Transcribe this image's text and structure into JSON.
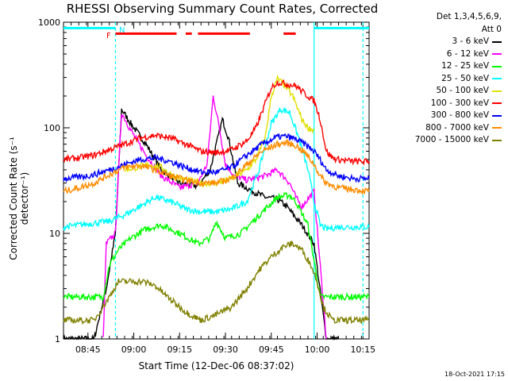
{
  "chart_data": {
    "type": "line",
    "title": "RHESSI Observing Summary Count Rates, Corrected",
    "xlabel": "Start Time (12-Dec-06 08:37:02)",
    "ylabel": "Corrected Count Rate (s⁻¹ detector⁻¹)",
    "yscale": "log",
    "ylim": [
      1,
      1000
    ],
    "xlim_minutes": [
      0,
      100
    ],
    "x_tick_labels": [
      "08:45",
      "09:00",
      "09:15",
      "09:30",
      "09:45",
      "10:00",
      "10:15"
    ],
    "x_tick_minutes": [
      8,
      23,
      38,
      53,
      68,
      83,
      98
    ],
    "y_tick_labels": [
      "1",
      "10",
      "100",
      "1000"
    ],
    "y_tick_values": [
      1,
      10,
      100,
      1000
    ],
    "legend_header": [
      "Det 1,3,4,5,6,9,",
      "Att 0"
    ],
    "flag_labels": {
      "F": "F",
      "N": "N"
    },
    "timestamp": "18-Oct-2021 17:15",
    "series": [
      {
        "name": "3 - 6 keV",
        "color": "#000000",
        "x": [
          0,
          10,
          14,
          17,
          19,
          22,
          27,
          32,
          38,
          44,
          48,
          52,
          54,
          57,
          62,
          66,
          70,
          73,
          78,
          82,
          86,
          90
        ],
        "y": [
          1,
          1,
          3,
          10,
          150,
          110,
          70,
          40,
          30,
          28,
          40,
          120,
          80,
          30,
          25,
          22,
          21,
          18,
          12,
          8,
          1,
          1
        ]
      },
      {
        "name": "6 - 12 keV",
        "color": "#ff00ff",
        "x": [
          13,
          14,
          17,
          19,
          22,
          27,
          32,
          38,
          44,
          47,
          49,
          51,
          53,
          56,
          60,
          66,
          70,
          74,
          76,
          78,
          82,
          86
        ],
        "y": [
          1,
          8,
          10,
          140,
          95,
          55,
          35,
          27,
          30,
          45,
          200,
          100,
          45,
          35,
          32,
          35,
          40,
          30,
          22,
          18,
          25,
          1
        ]
      },
      {
        "name": "12 - 25 keV",
        "color": "#00ff00",
        "x": [
          0,
          10,
          13,
          15,
          18,
          22,
          27,
          32,
          38,
          44,
          48,
          50,
          53,
          58,
          62,
          66,
          70,
          74,
          76,
          80,
          84,
          88,
          92,
          100
        ],
        "y": [
          2.5,
          2.5,
          2.5,
          5,
          7,
          9,
          11,
          12,
          10,
          8,
          9,
          13,
          9,
          10,
          13,
          17,
          22,
          23,
          20,
          12,
          2.5,
          2.5,
          2.5,
          2.5
        ]
      },
      {
        "name": "25 - 50 keV",
        "color": "#00ffff",
        "x": [
          0,
          5,
          10,
          15,
          20,
          25,
          30,
          35,
          40,
          45,
          50,
          55,
          60,
          64,
          68,
          71,
          74,
          77,
          80,
          82,
          84,
          86,
          90,
          95,
          100
        ],
        "y": [
          11.5,
          12,
          12.5,
          13,
          15,
          18,
          22,
          20,
          17,
          16,
          16,
          17,
          20,
          40,
          110,
          150,
          140,
          80,
          40,
          20,
          12,
          11,
          11.5,
          11.5,
          11.5
        ]
      },
      {
        "name": "50 - 100 keV",
        "color": "#e0e000",
        "x": [
          20,
          24,
          28,
          32,
          36,
          40,
          45,
          50,
          55,
          60,
          63,
          66,
          68,
          70,
          72,
          75,
          78,
          80,
          82
        ],
        "y": [
          40,
          42,
          45,
          42,
          35,
          32,
          30,
          30,
          33,
          40,
          50,
          80,
          200,
          290,
          260,
          200,
          120,
          100,
          95
        ]
      },
      {
        "name": "100 - 300 keV",
        "color": "#ff0000",
        "x": [
          0,
          5,
          10,
          15,
          20,
          25,
          30,
          35,
          40,
          45,
          50,
          55,
          60,
          63,
          66,
          68,
          70,
          73,
          76,
          79,
          82,
          84,
          86,
          88,
          90,
          95,
          100
        ],
        "y": [
          50,
          52,
          55,
          62,
          70,
          80,
          85,
          80,
          70,
          60,
          58,
          62,
          75,
          100,
          170,
          240,
          270,
          260,
          250,
          210,
          180,
          120,
          60,
          52,
          50,
          48,
          48
        ]
      },
      {
        "name": "300 - 800 keV",
        "color": "#0000ff",
        "x": [
          0,
          5,
          10,
          15,
          20,
          25,
          30,
          35,
          40,
          45,
          50,
          55,
          60,
          65,
          70,
          73,
          76,
          79,
          82,
          84,
          86,
          90,
          95,
          100
        ],
        "y": [
          33,
          34,
          36,
          40,
          45,
          50,
          52,
          48,
          42,
          38,
          38,
          42,
          55,
          70,
          82,
          83,
          78,
          70,
          60,
          50,
          40,
          35,
          33,
          33
        ]
      },
      {
        "name": "800 - 7000 keV",
        "color": "#ff8c00",
        "x": [
          0,
          5,
          10,
          15,
          20,
          25,
          30,
          35,
          40,
          45,
          50,
          55,
          60,
          65,
          70,
          73,
          76,
          79,
          82,
          84,
          86,
          90,
          95,
          100
        ],
        "y": [
          25,
          27,
          30,
          36,
          42,
          44,
          40,
          35,
          32,
          30,
          30,
          33,
          45,
          60,
          70,
          72,
          68,
          58,
          45,
          35,
          30,
          27,
          26,
          25
        ]
      },
      {
        "name": "7000 - 15000 keV",
        "color": "#808000",
        "x": [
          0,
          5,
          10,
          15,
          18,
          22,
          26,
          30,
          34,
          40,
          45,
          50,
          55,
          60,
          64,
          68,
          72,
          75,
          78,
          81,
          83,
          85,
          88,
          92,
          96,
          100
        ],
        "y": [
          1.5,
          1.5,
          1.5,
          2.5,
          3.5,
          3.5,
          3.5,
          3.2,
          2.5,
          1.8,
          1.5,
          1.7,
          2,
          3,
          4.5,
          6,
          7.5,
          8,
          7,
          5,
          3.5,
          2,
          1.5,
          1.5,
          1.5,
          1.5
        ]
      }
    ],
    "flag_bars": {
      "cyan_top": {
        "color": "#00ffff",
        "x": [
          [
            0,
            17
          ],
          [
            82,
            100
          ]
        ],
        "y": 880
      },
      "red_top": {
        "color": "#ff0000",
        "x": [
          [
            17,
            37
          ],
          [
            40,
            42
          ],
          [
            44,
            61
          ],
          [
            72,
            76
          ]
        ],
        "y": 780
      }
    },
    "vertical_lines": [
      {
        "x": 17,
        "color": "#00ffff",
        "style": "dashed"
      },
      {
        "x": 82,
        "color": "#00ffff",
        "style": "solid"
      },
      {
        "x": 98,
        "color": "#00ffff",
        "style": "dashed"
      }
    ]
  }
}
